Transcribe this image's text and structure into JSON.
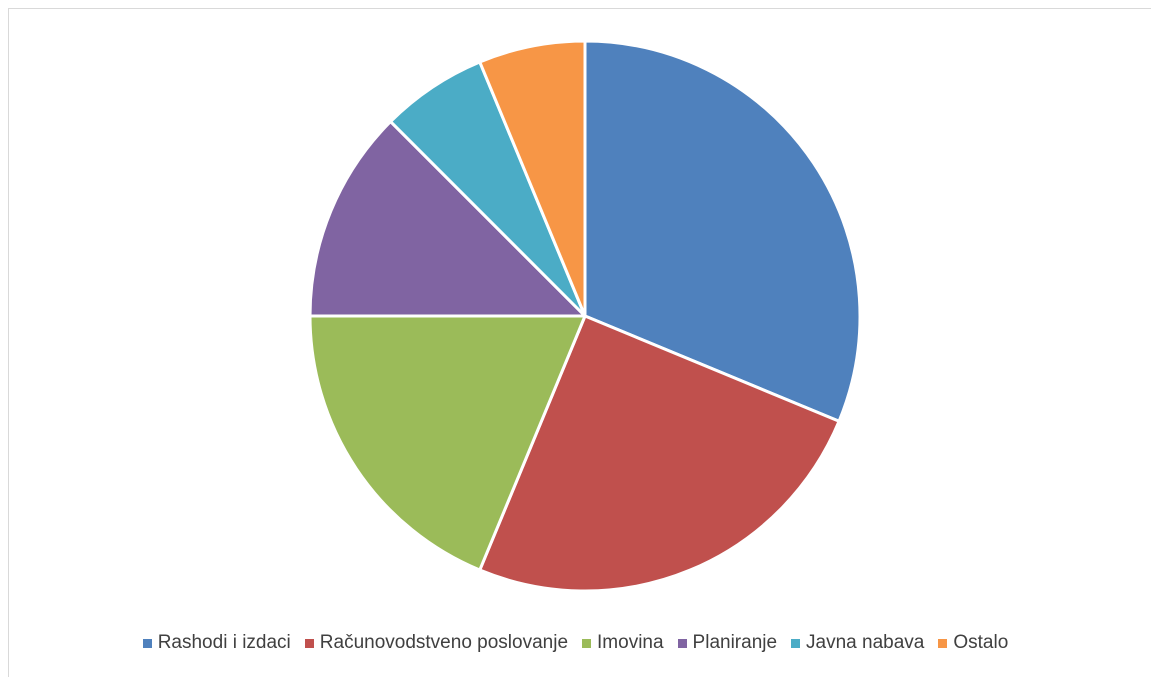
{
  "chart_data": {
    "type": "pie",
    "title": "",
    "series": [
      {
        "values": [
          {
            "label": "Rashodi i izdaci",
            "value": 31.25,
            "color": "#4F81BD"
          },
          {
            "label": "Računovodstveno poslovanje",
            "value": 25.0,
            "color": "#C0504D"
          },
          {
            "label": "Imovina",
            "value": 18.75,
            "color": "#9BBB59"
          },
          {
            "label": "Planiranje",
            "value": 12.5,
            "color": "#8064A2"
          },
          {
            "label": "Javna nabava",
            "value": 6.25,
            "color": "#4BACC6"
          },
          {
            "label": "Ostalo",
            "value": 6.25,
            "color": "#F79646"
          }
        ]
      }
    ],
    "legend_position": "bottom",
    "start_angle": "12 o'clock, clockwise"
  }
}
